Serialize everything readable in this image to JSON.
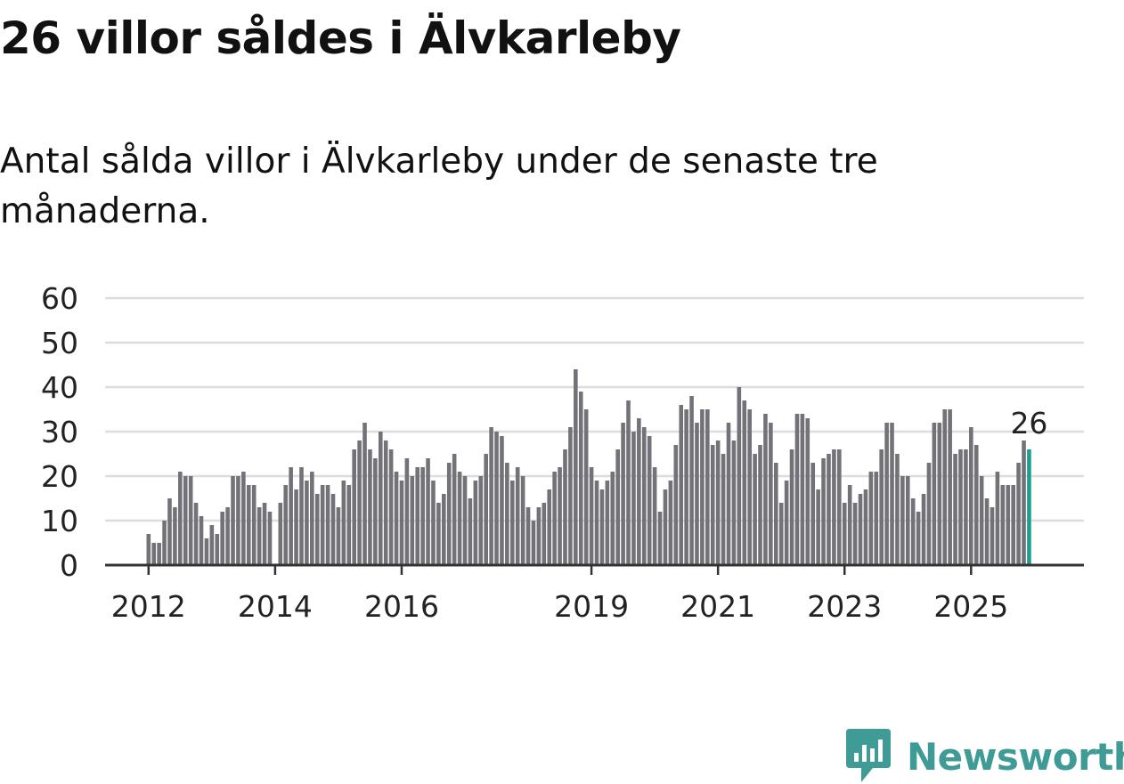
{
  "header": {
    "title": "26 villor såldes i Älvkarleby",
    "subtitle": "Antal sålda villor i Älvkarleby under de senaste tre månaderna."
  },
  "brand": {
    "name": "Newsworthy",
    "color": "#3f9b96"
  },
  "colors": {
    "bar": "#737278",
    "highlight": "#1f9d93",
    "grid": "#dddddd",
    "axis": "#333333"
  },
  "chart_data": {
    "type": "bar",
    "title": "26 villor såldes i Älvkarleby",
    "subtitle": "Antal sålda villor i Älvkarleby under de senaste tre månaderna.",
    "xlabel": "",
    "ylabel": "",
    "ylim": [
      0,
      60
    ],
    "yticks": [
      0,
      10,
      20,
      30,
      40,
      50,
      60
    ],
    "xtick_labels": [
      "2012",
      "2014",
      "2016",
      "2019",
      "2021",
      "2023",
      "2025"
    ],
    "start": "2012-01",
    "interval": "month",
    "values": [
      7,
      5,
      5,
      10,
      15,
      13,
      21,
      20,
      20,
      14,
      11,
      6,
      9,
      7,
      12,
      13,
      20,
      20,
      21,
      18,
      18,
      13,
      14,
      12,
      0,
      14,
      18,
      22,
      17,
      22,
      19,
      21,
      16,
      18,
      18,
      16,
      13,
      19,
      18,
      26,
      28,
      32,
      26,
      24,
      30,
      28,
      26,
      21,
      19,
      24,
      20,
      22,
      22,
      24,
      19,
      14,
      16,
      23,
      25,
      21,
      20,
      15,
      19,
      20,
      25,
      31,
      30,
      29,
      23,
      19,
      22,
      20,
      13,
      10,
      13,
      14,
      17,
      21,
      22,
      26,
      31,
      44,
      39,
      35,
      22,
      19,
      17,
      19,
      21,
      26,
      32,
      37,
      30,
      33,
      31,
      29,
      22,
      12,
      17,
      19,
      27,
      36,
      35,
      38,
      32,
      35,
      35,
      27,
      28,
      25,
      32,
      28,
      40,
      37,
      35,
      25,
      27,
      34,
      32,
      23,
      14,
      19,
      26,
      34,
      34,
      33,
      23,
      17,
      24,
      25,
      26,
      26,
      14,
      18,
      14,
      16,
      17,
      21,
      21,
      26,
      32,
      32,
      25,
      20,
      20,
      15,
      12,
      16,
      23,
      32,
      32,
      35,
      35,
      25,
      26,
      26,
      31,
      27,
      20,
      15,
      13,
      21,
      18,
      18,
      18,
      23,
      28,
      26
    ],
    "highlight_last": true,
    "annotation": {
      "label": "26",
      "target": "last"
    }
  }
}
